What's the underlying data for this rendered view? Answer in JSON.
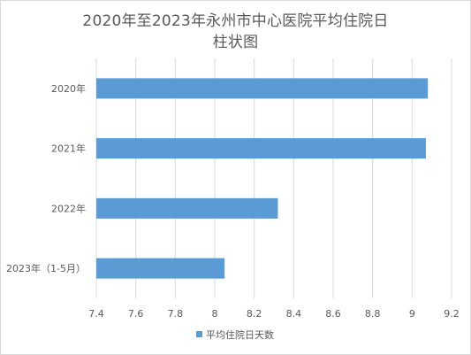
{
  "chart_data": {
    "type": "bar",
    "orientation": "horizontal",
    "title_lines": [
      "2020年至2023年永州市中心医院平均住院日",
      "柱状图"
    ],
    "categories": [
      "2020年",
      "2021年",
      "2022年",
      "2023年（1-5月）"
    ],
    "series": [
      {
        "name": "平均住院日天数",
        "values": [
          9.08,
          9.07,
          8.32,
          8.05
        ],
        "color": "#5b9bd5"
      }
    ],
    "xlim": [
      7.4,
      9.2
    ],
    "xticks": [
      "7.4",
      "7.6",
      "7.8",
      "8",
      "8.2",
      "8.4",
      "8.6",
      "8.8",
      "9",
      "9.2"
    ],
    "grid": true,
    "legend_position": "bottom"
  }
}
